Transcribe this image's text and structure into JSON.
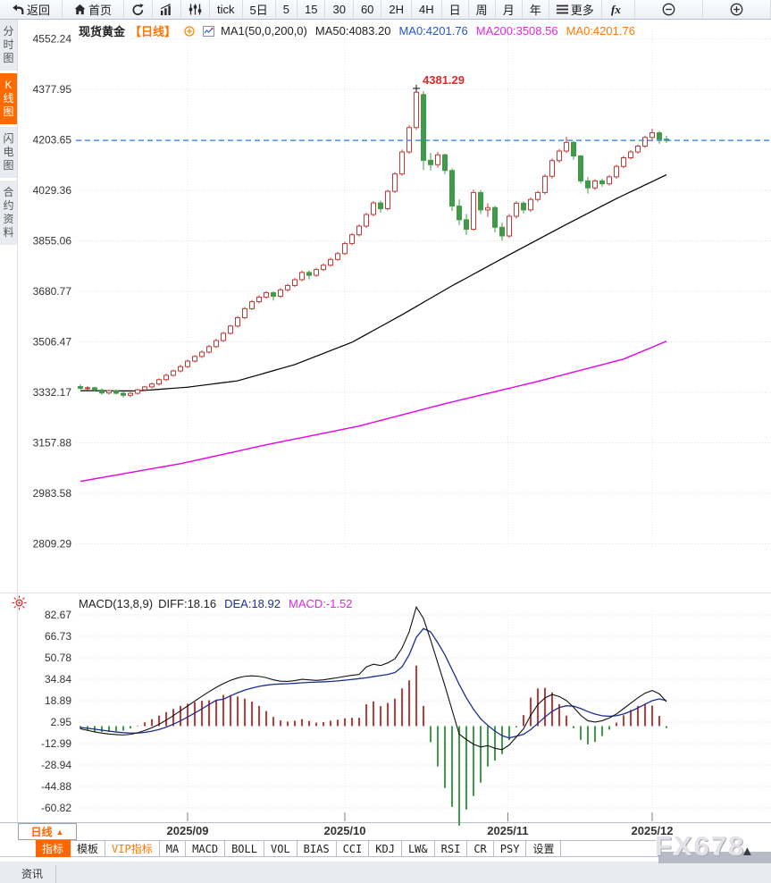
{
  "app": {
    "accent_orange": "#ff6600"
  },
  "toolbar_top": {
    "items": [
      {
        "id": "back",
        "icon": "back-arrow-icon",
        "label": "返回",
        "pad": true
      },
      {
        "id": "home",
        "icon": "home-icon",
        "label": "首页",
        "pad": true
      },
      {
        "id": "refresh",
        "icon": "refresh-icon",
        "label": ""
      },
      {
        "id": "bar-chart",
        "icon": "bar-chart-icon",
        "label": ""
      },
      {
        "id": "candle-chart",
        "icon": "candle-chart-icon",
        "label": ""
      },
      {
        "id": "tick",
        "label": "tick"
      },
      {
        "id": "5d",
        "label": "5日"
      },
      {
        "id": "5min",
        "label": "5"
      },
      {
        "id": "15min",
        "label": "15"
      },
      {
        "id": "30min",
        "label": "30"
      },
      {
        "id": "60min",
        "label": "60"
      },
      {
        "id": "2h",
        "label": "2H"
      },
      {
        "id": "4h",
        "label": "4H"
      },
      {
        "id": "day",
        "label": "日"
      },
      {
        "id": "week",
        "label": "周"
      },
      {
        "id": "month",
        "label": "月"
      },
      {
        "id": "year",
        "label": "年"
      },
      {
        "id": "more",
        "icon": "menu-icon",
        "label": "更多"
      },
      {
        "id": "fx",
        "icon": "fx-icon",
        "label": ""
      },
      {
        "id": "zoom-out",
        "icon": "zoom-out-icon",
        "label": "",
        "wide": true
      },
      {
        "id": "zoom-in",
        "icon": "zoom-in-icon",
        "label": "",
        "wide": true
      }
    ]
  },
  "sidebar": {
    "tabs": [
      {
        "name": "time-share",
        "label": "分时图",
        "active": false
      },
      {
        "name": "kline",
        "label": "K线图",
        "active": true
      },
      {
        "name": "lightning",
        "label": "闪电图",
        "active": false
      },
      {
        "name": "contract-info",
        "label": "合约资料",
        "active": false
      }
    ]
  },
  "chart_header": {
    "symbol": "现货黄金",
    "period": "【日线】",
    "ma_formula": "MA1(50,0,200,0)",
    "ma50": "MA50:4083.20",
    "ma0_blue": "MA0:4201.76",
    "ma200": "MA200:3508.56",
    "ma0_orange": "MA0:4201.76"
  },
  "macd_header": {
    "formula": "MACD(13,8,9)",
    "diff": "DIFF:18.16",
    "dea": "DEA:18.92",
    "macd": "MACD:-1.52"
  },
  "xaxis_row": {
    "period_label": "日线",
    "period_arrow": "▲"
  },
  "indicator_bar": {
    "items": [
      {
        "key": "zhibiao",
        "label": "指标",
        "active": true
      },
      {
        "key": "moban",
        "label": "模板"
      },
      {
        "key": "vip",
        "label": "VIP指标",
        "vip": true
      },
      {
        "key": "ma",
        "label": "MA"
      },
      {
        "key": "macd",
        "label": "MACD"
      },
      {
        "key": "boll",
        "label": "BOLL"
      },
      {
        "key": "vol",
        "label": "VOL"
      },
      {
        "key": "bias",
        "label": "BIAS"
      },
      {
        "key": "cci",
        "label": "CCI"
      },
      {
        "key": "kdj",
        "label": "KDJ"
      },
      {
        "key": "lw",
        "label": "LW&"
      },
      {
        "key": "rsi",
        "label": "RSI"
      },
      {
        "key": "cr",
        "label": "CR"
      },
      {
        "key": "psy",
        "label": "PSY"
      },
      {
        "key": "settings",
        "label": "设置"
      }
    ]
  },
  "watermark": "FX678",
  "corner_arrow": "▲",
  "bottom_bar": {
    "tab": "资讯"
  },
  "chart_data": [
    {
      "type": "candlestick",
      "title": "现货黄金 日线",
      "ylabel": "price",
      "ylim": [
        2809.29,
        4552.24
      ],
      "y_ticks": [
        4552.24,
        4377.95,
        4203.65,
        4029.36,
        3855.06,
        3680.77,
        3506.47,
        3332.17,
        3157.88,
        2983.58,
        2809.29
      ],
      "x_month_labels": [
        {
          "label": "2025/09",
          "index": 15
        },
        {
          "label": "2025/10",
          "index": 37
        },
        {
          "label": "2025/11",
          "index": 59.8
        },
        {
          "label": "2025/12",
          "index": 80
        }
      ],
      "last_price": 4201.76,
      "high_annotation": {
        "index": 47,
        "value": 4381.29,
        "text": "4381.29"
      },
      "ma50": {
        "name": "MA50",
        "value": 4083.2,
        "color": "#000000",
        "points": [
          [
            0,
            3338
          ],
          [
            8,
            3337
          ],
          [
            15,
            3350
          ],
          [
            22,
            3372
          ],
          [
            30,
            3428
          ],
          [
            38,
            3505
          ],
          [
            45,
            3600
          ],
          [
            52,
            3700
          ],
          [
            60,
            3807
          ],
          [
            68,
            3912
          ],
          [
            75,
            4001
          ],
          [
            82,
            4083.2
          ]
        ]
      },
      "ma200": {
        "name": "MA200",
        "value": 3508.56,
        "color": "#e800e8",
        "points": [
          [
            0,
            3025
          ],
          [
            14,
            3086
          ],
          [
            26,
            3151
          ],
          [
            39,
            3216
          ],
          [
            51,
            3293
          ],
          [
            64,
            3370
          ],
          [
            76,
            3447
          ],
          [
            82,
            3508.56
          ]
        ]
      },
      "colors": {
        "up": "#c43836",
        "down": "#3f9b47",
        "last_price_line": "#1e82f0",
        "grid": "#e5e1e1"
      },
      "candles_ohlc": [
        [
          3352,
          3360,
          3342,
          3346
        ],
        [
          3346,
          3354,
          3340,
          3348
        ],
        [
          3348,
          3352,
          3336,
          3340
        ],
        [
          3340,
          3346,
          3324,
          3330
        ],
        [
          3330,
          3342,
          3325,
          3338
        ],
        [
          3338,
          3342,
          3325,
          3329
        ],
        [
          3329,
          3335,
          3315,
          3322
        ],
        [
          3322,
          3333,
          3316,
          3329
        ],
        [
          3329,
          3344,
          3324,
          3341
        ],
        [
          3341,
          3355,
          3336,
          3351
        ],
        [
          3351,
          3366,
          3346,
          3361
        ],
        [
          3361,
          3380,
          3356,
          3376
        ],
        [
          3376,
          3396,
          3371,
          3391
        ],
        [
          3391,
          3411,
          3386,
          3406
        ],
        [
          3406,
          3427,
          3401,
          3421
        ],
        [
          3421,
          3445,
          3416,
          3440
        ],
        [
          3440,
          3461,
          3435,
          3456
        ],
        [
          3456,
          3477,
          3451,
          3471
        ],
        [
          3471,
          3496,
          3466,
          3490
        ],
        [
          3490,
          3517,
          3485,
          3511
        ],
        [
          3511,
          3541,
          3506,
          3536
        ],
        [
          3536,
          3566,
          3531,
          3561
        ],
        [
          3561,
          3596,
          3556,
          3590
        ],
        [
          3590,
          3627,
          3585,
          3621
        ],
        [
          3621,
          3651,
          3616,
          3645
        ],
        [
          3645,
          3667,
          3639,
          3661
        ],
        [
          3661,
          3682,
          3655,
          3676
        ],
        [
          3676,
          3681,
          3649,
          3664
        ],
        [
          3664,
          3692,
          3658,
          3686
        ],
        [
          3686,
          3707,
          3680,
          3701
        ],
        [
          3701,
          3727,
          3696,
          3721
        ],
        [
          3721,
          3752,
          3716,
          3746
        ],
        [
          3746,
          3753,
          3722,
          3736
        ],
        [
          3736,
          3762,
          3731,
          3756
        ],
        [
          3756,
          3777,
          3751,
          3771
        ],
        [
          3771,
          3797,
          3766,
          3791
        ],
        [
          3791,
          3817,
          3786,
          3811
        ],
        [
          3811,
          3852,
          3806,
          3846
        ],
        [
          3846,
          3882,
          3840,
          3876
        ],
        [
          3876,
          3912,
          3870,
          3906
        ],
        [
          3906,
          3952,
          3900,
          3946
        ],
        [
          3946,
          3992,
          3940,
          3986
        ],
        [
          3986,
          3994,
          3952,
          3966
        ],
        [
          3966,
          4032,
          3960,
          4026
        ],
        [
          4026,
          4092,
          4020,
          4086
        ],
        [
          4086,
          4170,
          4080,
          4162
        ],
        [
          4162,
          4255,
          4155,
          4246
        ],
        [
          4246,
          4381.29,
          4238,
          4368
        ],
        [
          4360,
          4372,
          4100,
          4133
        ],
        [
          4133,
          4158,
          4098,
          4118
        ],
        [
          4118,
          4162,
          4108,
          4152
        ],
        [
          4152,
          4156,
          4085,
          4098
        ],
        [
          4098,
          4105,
          3958,
          3975
        ],
        [
          3975,
          3998,
          3910,
          3928
        ],
        [
          3928,
          3948,
          3876,
          3895
        ],
        [
          3895,
          4032,
          3890,
          4022
        ],
        [
          4022,
          4030,
          3948,
          3962
        ],
        [
          3962,
          3985,
          3938,
          3970
        ],
        [
          3970,
          3976,
          3884,
          3902
        ],
        [
          3902,
          3918,
          3856,
          3872
        ],
        [
          3872,
          3948,
          3865,
          3940
        ],
        [
          3940,
          3992,
          3932,
          3985
        ],
        [
          3985,
          3992,
          3950,
          3962
        ],
        [
          3962,
          4005,
          3955,
          3998
        ],
        [
          3998,
          4028,
          3990,
          4022
        ],
        [
          4022,
          4085,
          4015,
          4078
        ],
        [
          4078,
          4140,
          4070,
          4132
        ],
        [
          4132,
          4172,
          4125,
          4165
        ],
        [
          4165,
          4215,
          4158,
          4195
        ],
        [
          4195,
          4200,
          4135,
          4148
        ],
        [
          4148,
          4152,
          4052,
          4062
        ],
        [
          4062,
          4075,
          4018,
          4038
        ],
        [
          4038,
          4068,
          4030,
          4062
        ],
        [
          4062,
          4070,
          4042,
          4052
        ],
        [
          4052,
          4082,
          4046,
          4076
        ],
        [
          4076,
          4118,
          4070,
          4112
        ],
        [
          4112,
          4148,
          4106,
          4142
        ],
        [
          4142,
          4168,
          4136,
          4162
        ],
        [
          4162,
          4188,
          4156,
          4182
        ],
        [
          4182,
          4218,
          4176,
          4212
        ],
        [
          4212,
          4242,
          4202,
          4228
        ],
        [
          4228,
          4234,
          4190,
          4206
        ],
        [
          4206,
          4218,
          4194,
          4202
        ]
      ]
    },
    {
      "type": "macd",
      "params": "MACD(13,8,9)",
      "ylim": [
        -60.82,
        82.67
      ],
      "y_ticks": [
        82.67,
        66.73,
        50.78,
        34.84,
        18.89,
        2.95,
        -12.99,
        -28.94,
        -44.88,
        -60.82
      ],
      "histogram_rule": "bar = 2*(DIFF-DEA)",
      "last_values": {
        "diff": 18.16,
        "dea": 18.92,
        "macd": -1.52
      },
      "diff": [
        -2,
        -3.2,
        -4.3,
        -5.2,
        -5.9,
        -6.3,
        -6.6,
        -6.1,
        -5,
        -3.3,
        -1.2,
        1.4,
        4.4,
        7.8,
        11.4,
        15,
        18.6,
        22.2,
        25.6,
        28.8,
        31.6,
        34,
        35.8,
        37,
        37.4,
        37,
        36,
        34.4,
        33.4,
        33.2,
        33.8,
        34.8,
        34.4,
        34,
        34.4,
        35.2,
        36,
        37,
        37.8,
        38.4,
        44,
        46,
        45,
        47,
        50,
        58,
        70,
        88.5,
        80,
        64,
        47,
        30,
        12,
        -6,
        -10,
        -13.5,
        -15.5,
        -14.5,
        -16.5,
        -17.5,
        -14,
        -8,
        -2,
        8,
        16,
        21,
        23.5,
        22,
        19,
        14,
        8,
        4,
        3,
        4,
        6,
        9,
        13,
        17,
        21,
        24.5,
        26.5,
        24,
        18.16
      ],
      "dea": [
        -1,
        -1.6,
        -2.3,
        -3,
        -3.7,
        -4.4,
        -4.9,
        -5.2,
        -5.2,
        -4.7,
        -3.8,
        -2.5,
        -0.8,
        1.4,
        3.9,
        6.7,
        9.7,
        12.8,
        16,
        19.2,
        20,
        22.5,
        24.8,
        26.8,
        28.3,
        29.5,
        30.4,
        31,
        31.3,
        31.5,
        31.8,
        32.2,
        32.5,
        32.7,
        32.9,
        33.2,
        33.6,
        34.1,
        34.7,
        35.3,
        35.9,
        36.8,
        37.6,
        38.4,
        39.8,
        44,
        53,
        66,
        72.5,
        70,
        62,
        53,
        42,
        31,
        21,
        12.5,
        5.5,
        0.5,
        -3.7,
        -7.1,
        -8.8,
        -7.5,
        -6.1,
        -2.6,
        2,
        6.8,
        11,
        13.8,
        15.1,
        14.8,
        13.1,
        10.8,
        8.9,
        7.7,
        7.3,
        7.7,
        9,
        11,
        13.5,
        16.3,
        18.9,
        20.2,
        18.92
      ],
      "colors": {
        "diff": "#111111",
        "dea": "#1b2f90",
        "hist_pos": "#c23b38",
        "hist_neg": "#3f9b47"
      }
    }
  ]
}
